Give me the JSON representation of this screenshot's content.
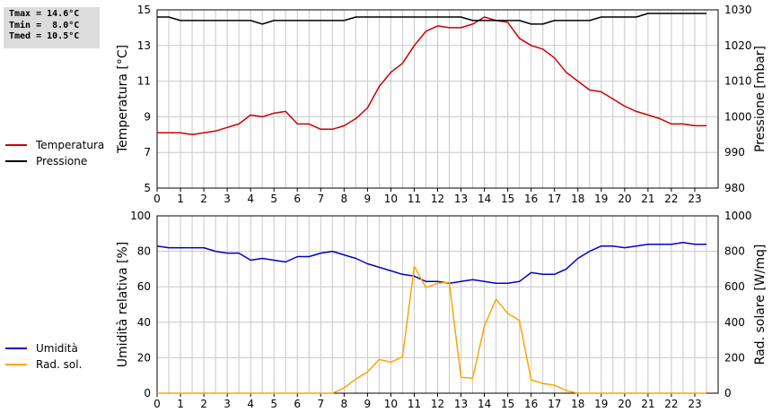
{
  "stats": {
    "tmax": "Tmax = 14.6°C",
    "tmin": "Tmin =  8.0°C",
    "tmed": "Tmed = 10.5°C"
  },
  "colors": {
    "temperatura": "#cc0000",
    "pressione": "#000000",
    "umidita": "#0000cc",
    "rad_sol": "#ffa500",
    "grid": "#c8c8c8"
  },
  "legend_top": [
    {
      "label": "Temperatura",
      "color": "#cc0000"
    },
    {
      "label": "Pressione",
      "color": "#000000"
    }
  ],
  "legend_bottom": [
    {
      "label": "Umidità",
      "color": "#0000cc"
    },
    {
      "label": "Rad. sol.",
      "color": "#ffa500"
    }
  ],
  "chart_data": [
    {
      "type": "line",
      "x_ticks": [
        "0",
        "1",
        "2",
        "3",
        "4",
        "5",
        "6",
        "7",
        "8",
        "9",
        "10",
        "11",
        "12",
        "13",
        "14",
        "15",
        "16",
        "17",
        "18",
        "19",
        "20",
        "21",
        "22",
        "23"
      ],
      "x": [
        0,
        0.5,
        1,
        1.5,
        2,
        2.5,
        3,
        3.5,
        4,
        4.5,
        5,
        5.5,
        6,
        6.5,
        7,
        7.5,
        8,
        8.5,
        9,
        9.5,
        10,
        10.5,
        11,
        11.5,
        12,
        12.5,
        13,
        13.5,
        14,
        14.5,
        15,
        15.5,
        16,
        16.5,
        17,
        17.5,
        18,
        18.5,
        19,
        19.5,
        20,
        20.5,
        21,
        21.5,
        22,
        22.5,
        23,
        23.5
      ],
      "xlim": [
        0,
        24
      ],
      "ylabel_left": "Temperatura [°C]",
      "ylim_left": [
        5,
        15
      ],
      "yticks_left": [
        "5",
        "7",
        "9",
        "11",
        "13",
        "15"
      ],
      "ylabel_right": "Pressione [mbar]",
      "ylim_right": [
        980,
        1030
      ],
      "yticks_right": [
        "980",
        "990",
        "1000",
        "1010",
        "1020",
        "1030"
      ],
      "grid": true,
      "series": [
        {
          "name": "Temperatura",
          "axis": "left",
          "color": "#cc0000",
          "values": [
            8.1,
            8.1,
            8.1,
            8.0,
            8.1,
            8.2,
            8.4,
            8.6,
            9.1,
            9.0,
            9.2,
            9.3,
            8.6,
            8.6,
            8.3,
            8.3,
            8.5,
            8.9,
            9.5,
            10.7,
            11.5,
            12.0,
            13.0,
            13.8,
            14.1,
            14.0,
            14.0,
            14.2,
            14.6,
            14.4,
            14.3,
            13.4,
            13.0,
            12.8,
            12.3,
            11.5,
            11.0,
            10.5,
            10.4,
            10.0,
            9.6,
            9.3,
            9.1,
            8.9,
            8.6,
            8.6,
            8.5,
            8.5
          ]
        },
        {
          "name": "Pressione",
          "axis": "right",
          "color": "#000000",
          "values": [
            1028,
            1028,
            1027,
            1027,
            1027,
            1027,
            1027,
            1027,
            1027,
            1026,
            1027,
            1027,
            1027,
            1027,
            1027,
            1027,
            1027,
            1028,
            1028,
            1028,
            1028,
            1028,
            1028,
            1028,
            1028,
            1028,
            1028,
            1027,
            1027,
            1027,
            1027,
            1027,
            1026,
            1026,
            1027,
            1027,
            1027,
            1027,
            1028,
            1028,
            1028,
            1028,
            1029,
            1029,
            1029,
            1029,
            1029,
            1029
          ]
        }
      ]
    },
    {
      "type": "line",
      "x_ticks": [
        "0",
        "1",
        "2",
        "3",
        "4",
        "5",
        "6",
        "7",
        "8",
        "9",
        "10",
        "11",
        "12",
        "13",
        "14",
        "15",
        "16",
        "17",
        "18",
        "19",
        "20",
        "21",
        "22",
        "23"
      ],
      "x": [
        0,
        0.5,
        1,
        1.5,
        2,
        2.5,
        3,
        3.5,
        4,
        4.5,
        5,
        5.5,
        6,
        6.5,
        7,
        7.5,
        8,
        8.5,
        9,
        9.5,
        10,
        10.5,
        11,
        11.5,
        12,
        12.5,
        13,
        13.5,
        14,
        14.5,
        15,
        15.5,
        16,
        16.5,
        17,
        17.5,
        18,
        18.5,
        19,
        19.5,
        20,
        20.5,
        21,
        21.5,
        22,
        22.5,
        23,
        23.5
      ],
      "xlim": [
        0,
        24
      ],
      "ylabel_left": "Umidità relativa [%]",
      "ylim_left": [
        0,
        100
      ],
      "yticks_left": [
        "0",
        "20",
        "40",
        "60",
        "80",
        "100"
      ],
      "ylabel_right": "Rad. solare [W/mq]",
      "ylim_right": [
        0,
        1000
      ],
      "yticks_right": [
        "0",
        "200",
        "400",
        "600",
        "800",
        "1000"
      ],
      "grid": true,
      "series": [
        {
          "name": "Umidità",
          "axis": "left",
          "color": "#0000cc",
          "values": [
            83,
            82,
            82,
            82,
            82,
            80,
            79,
            79,
            75,
            76,
            75,
            74,
            77,
            77,
            79,
            80,
            78,
            76,
            73,
            71,
            69,
            67,
            66,
            63,
            63,
            62,
            63,
            64,
            63,
            62,
            62,
            63,
            68,
            67,
            67,
            70,
            76,
            80,
            83,
            83,
            82,
            83,
            84,
            84,
            84,
            85,
            84,
            84
          ]
        },
        {
          "name": "Rad. sol.",
          "axis": "right",
          "color": "#ffa500",
          "values": [
            0,
            0,
            0,
            0,
            0,
            0,
            0,
            0,
            0,
            0,
            0,
            0,
            0,
            0,
            0,
            0,
            30,
            80,
            120,
            190,
            175,
            205,
            715,
            595,
            620,
            625,
            90,
            85,
            380,
            530,
            450,
            410,
            75,
            55,
            45,
            15,
            0,
            0,
            0,
            0,
            0,
            0,
            0,
            0,
            0,
            0,
            0,
            0
          ]
        }
      ]
    }
  ]
}
